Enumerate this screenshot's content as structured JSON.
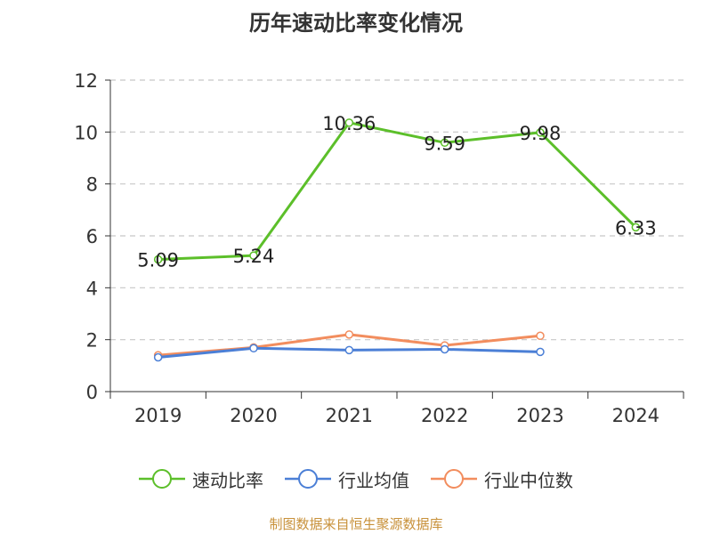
{
  "title": "历年速动比率变化情况",
  "source": "制图数据来自恒生聚源数据库",
  "chart_data": {
    "type": "line",
    "categories": [
      "2019",
      "2020",
      "2021",
      "2022",
      "2023",
      "2024"
    ],
    "ylim": [
      0,
      12
    ],
    "yticks": [
      0,
      2,
      4,
      6,
      8,
      10,
      12
    ],
    "grid": true,
    "legend_position": "bottom",
    "series": [
      {
        "name": "速动比率",
        "color": "#5cbf2a",
        "values": [
          5.09,
          5.24,
          10.36,
          9.59,
          9.98,
          6.33
        ],
        "labels": [
          "5.09",
          "5.24",
          "10.36",
          "9.59",
          "9.98",
          "6.33"
        ]
      },
      {
        "name": "行业均值",
        "color": "#4b7fd6",
        "values": [
          1.32,
          1.67,
          1.6,
          1.63,
          1.53,
          null
        ]
      },
      {
        "name": "行业中位数",
        "color": "#f28d5e",
        "values": [
          1.4,
          1.7,
          2.2,
          1.78,
          2.15,
          null
        ]
      }
    ]
  }
}
